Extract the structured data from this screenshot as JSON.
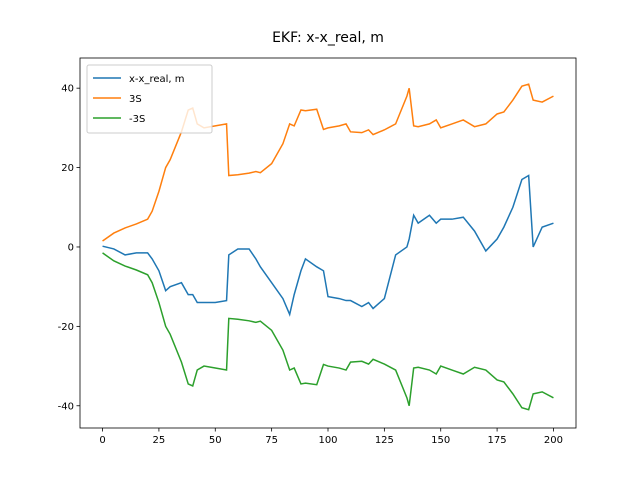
{
  "chart_data": {
    "type": "line",
    "title": "EKF: x-x_real, m",
    "x": [
      0,
      5,
      10,
      15,
      20,
      22,
      25,
      28,
      30,
      35,
      38,
      40,
      42,
      45,
      50,
      55,
      56,
      60,
      65,
      68,
      70,
      75,
      80,
      83,
      85,
      88,
      90,
      95,
      98,
      100,
      105,
      108,
      110,
      115,
      118,
      120,
      125,
      130,
      135,
      136,
      138,
      140,
      145,
      148,
      150,
      155,
      160,
      165,
      170,
      175,
      178,
      182,
      186,
      189,
      191,
      195,
      200
    ],
    "series": [
      {
        "name": "x-x_real, m",
        "color": "#1f77b4",
        "values": [
          0.2,
          -0.5,
          -2,
          -1.5,
          -1.5,
          -3,
          -6,
          -11,
          -10,
          -9,
          -12,
          -12,
          -14,
          -14,
          -14,
          -13.5,
          -2,
          -0.5,
          -0.5,
          -3,
          -5,
          -9,
          -13,
          -17,
          -12,
          -6,
          -3,
          -5,
          -6,
          -12.5,
          -13,
          -13.5,
          -13.5,
          -15,
          -14,
          -15.5,
          -13,
          -2,
          0,
          2,
          8,
          6,
          8,
          6,
          7,
          7,
          7.5,
          4,
          -1,
          2,
          5,
          10,
          17,
          18,
          0,
          5,
          6
        ]
      },
      {
        "name": "3S",
        "color": "#ff7f0e",
        "values": [
          1.5,
          3.5,
          4.8,
          5.8,
          7,
          9,
          14,
          20,
          22,
          29,
          34.5,
          35,
          31,
          30,
          30.5,
          31,
          18,
          18.2,
          18.6,
          19,
          18.7,
          21,
          26,
          31,
          30.5,
          34.5,
          34.3,
          34.7,
          29.6,
          30,
          30.5,
          31,
          29,
          28.8,
          29.5,
          28.3,
          29.5,
          31,
          38,
          40,
          30.5,
          30.3,
          31,
          32,
          30,
          31,
          32,
          30.3,
          31,
          33.5,
          34,
          37,
          40.5,
          41,
          37,
          36.5,
          38
        ]
      },
      {
        "name": "-3S",
        "color": "#2ca02c",
        "values": [
          -1.5,
          -3.5,
          -4.8,
          -5.8,
          -7,
          -9,
          -14,
          -20,
          -22,
          -29,
          -34.5,
          -35,
          -31,
          -30,
          -30.5,
          -31,
          -18,
          -18.2,
          -18.6,
          -19,
          -18.7,
          -21,
          -26,
          -31,
          -30.5,
          -34.5,
          -34.3,
          -34.7,
          -29.6,
          -30,
          -30.5,
          -31,
          -29,
          -28.8,
          -29.5,
          -28.3,
          -29.5,
          -31,
          -38,
          -40,
          -30.5,
          -30.3,
          -31,
          -32,
          -30,
          -31,
          -32,
          -30.3,
          -31,
          -33.5,
          -34,
          -37,
          -40.5,
          -41,
          -37,
          -36.5,
          -38
        ]
      }
    ],
    "xlim": [
      -10,
      210
    ],
    "ylim": [
      -45.6,
      47.6
    ],
    "xticks": [
      0,
      25,
      50,
      75,
      100,
      125,
      150,
      175,
      200
    ],
    "yticks": [
      -40,
      -20,
      0,
      20,
      40
    ],
    "legend": "upper left"
  }
}
